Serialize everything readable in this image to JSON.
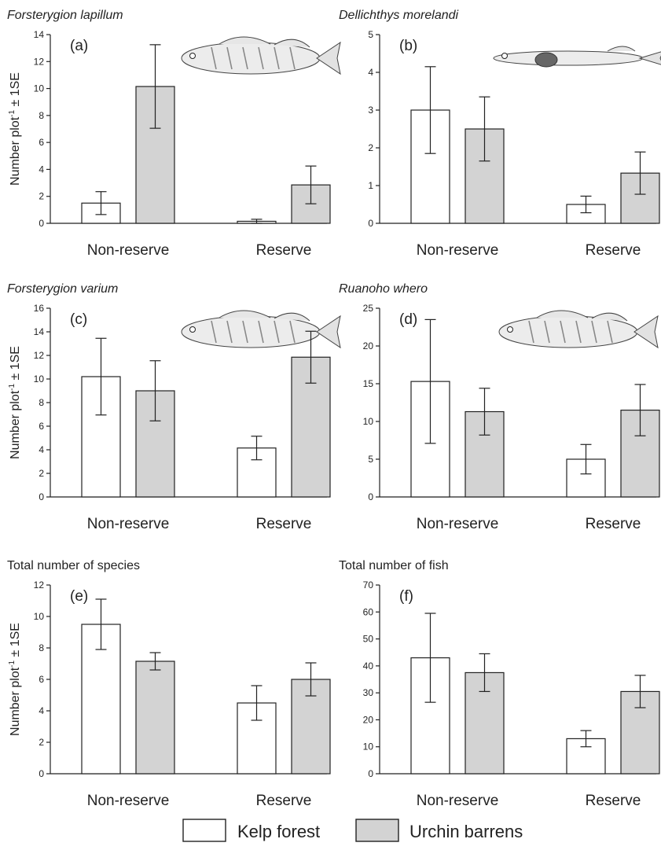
{
  "legend": {
    "items": [
      {
        "name": "Kelp forest",
        "color": "#ffffff"
      },
      {
        "name": "Urchin barrens",
        "color": "#d3d3d3"
      }
    ]
  },
  "ylabel": {
    "main": "Number plot",
    "sup": "-1",
    "tail": " ± 1SE"
  },
  "chart_data": [
    {
      "type": "bar",
      "title": "Forsterygion lapillum",
      "title_italic": true,
      "letter": "(a)",
      "categories": [
        "Non-reserve",
        "Reserve"
      ],
      "ylim": [
        0,
        14
      ],
      "ystep": 2,
      "has_fish": true,
      "series": [
        {
          "name": "Kelp forest",
          "values": [
            1.5,
            0.15
          ],
          "se": [
            0.85,
            0.15
          ]
        },
        {
          "name": "Urchin barrens",
          "values": [
            10.15,
            2.85
          ],
          "se": [
            3.1,
            1.4
          ]
        }
      ]
    },
    {
      "type": "bar",
      "title": "Dellichthys morelandi",
      "title_italic": true,
      "letter": "(b)",
      "categories": [
        "Non-reserve",
        "Reserve"
      ],
      "ylim": [
        0,
        5
      ],
      "ystep": 1,
      "has_fish": true,
      "series": [
        {
          "name": "Kelp forest",
          "values": [
            3.0,
            0.5
          ],
          "se": [
            1.15,
            0.22
          ]
        },
        {
          "name": "Urchin barrens",
          "values": [
            2.5,
            1.33
          ],
          "se": [
            0.85,
            0.56
          ]
        }
      ]
    },
    {
      "type": "bar",
      "title": "Forsterygion varium",
      "title_italic": true,
      "letter": "(c)",
      "categories": [
        "Non-reserve",
        "Reserve"
      ],
      "ylim": [
        0,
        16
      ],
      "ystep": 2,
      "has_fish": true,
      "series": [
        {
          "name": "Kelp forest",
          "values": [
            10.2,
            4.15
          ],
          "se": [
            3.25,
            1.0
          ]
        },
        {
          "name": "Urchin barrens",
          "values": [
            9.0,
            11.85
          ],
          "se": [
            2.55,
            2.2
          ]
        }
      ]
    },
    {
      "type": "bar",
      "title": "Ruanoho whero",
      "title_italic": true,
      "letter": "(d)",
      "categories": [
        "Non-reserve",
        "Reserve"
      ],
      "ylim": [
        0,
        25
      ],
      "ystep": 5,
      "has_fish": true,
      "series": [
        {
          "name": "Kelp forest",
          "values": [
            15.3,
            5.0
          ],
          "se": [
            8.2,
            1.95
          ]
        },
        {
          "name": "Urchin barrens",
          "values": [
            11.3,
            11.5
          ],
          "se": [
            3.1,
            3.4
          ]
        }
      ]
    },
    {
      "type": "bar",
      "title": "Total number of species",
      "title_italic": false,
      "letter": "(e)",
      "categories": [
        "Non-reserve",
        "Reserve"
      ],
      "ylim": [
        0,
        12
      ],
      "ystep": 2,
      "has_fish": false,
      "series": [
        {
          "name": "Kelp forest",
          "values": [
            9.5,
            4.5
          ],
          "se": [
            1.6,
            1.1
          ]
        },
        {
          "name": "Urchin barrens",
          "values": [
            7.15,
            6.0
          ],
          "se": [
            0.55,
            1.05
          ]
        }
      ]
    },
    {
      "type": "bar",
      "title": "Total number of fish",
      "title_italic": false,
      "letter": "(f)",
      "categories": [
        "Non-reserve",
        "Reserve"
      ],
      "ylim": [
        0,
        70
      ],
      "ystep": 10,
      "has_fish": false,
      "series": [
        {
          "name": "Kelp forest",
          "values": [
            43.0,
            13.0
          ],
          "se": [
            16.5,
            3.0
          ]
        },
        {
          "name": "Urchin barrens",
          "values": [
            37.5,
            30.5
          ],
          "se": [
            7.0,
            6.0
          ]
        }
      ]
    }
  ]
}
